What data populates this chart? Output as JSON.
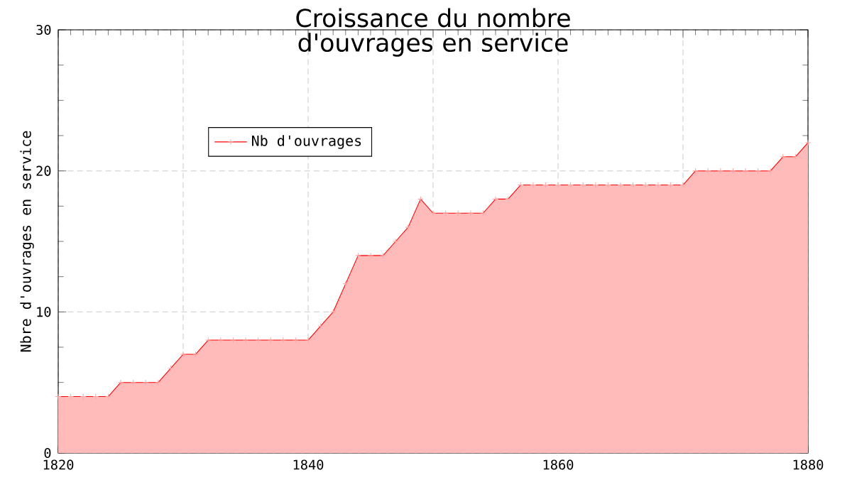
{
  "chart_data": {
    "type": "area",
    "title": "Croissance du nombre d'ouvrages en service",
    "ylabel": "Nbre d'ouvrages en service",
    "x": [
      1820,
      1821,
      1822,
      1823,
      1824,
      1825,
      1826,
      1827,
      1828,
      1829,
      1830,
      1831,
      1832,
      1833,
      1834,
      1835,
      1836,
      1837,
      1838,
      1839,
      1840,
      1841,
      1842,
      1843,
      1844,
      1845,
      1846,
      1847,
      1848,
      1849,
      1850,
      1851,
      1852,
      1853,
      1854,
      1855,
      1856,
      1857,
      1858,
      1859,
      1860,
      1861,
      1862,
      1863,
      1864,
      1865,
      1866,
      1867,
      1868,
      1869,
      1870,
      1871,
      1872,
      1873,
      1874,
      1875,
      1876,
      1877,
      1878,
      1879,
      1880
    ],
    "series": [
      {
        "name": "Nb d'ouvrages",
        "color": "#ff0000",
        "values": [
          4,
          4,
          4,
          4,
          4,
          5,
          5,
          5,
          5,
          6,
          7,
          7,
          8,
          8,
          8,
          8,
          8,
          8,
          8,
          8,
          8,
          9,
          10,
          12,
          14,
          14,
          14,
          15,
          16,
          18,
          17,
          17,
          17,
          17,
          17,
          18,
          18,
          19,
          19,
          19,
          19,
          19,
          19,
          19,
          19,
          19,
          19,
          19,
          19,
          19,
          19,
          20,
          20,
          20,
          20,
          20,
          20,
          20,
          21,
          21,
          22
        ]
      }
    ],
    "xlim": [
      1820,
      1880
    ],
    "xticks": [
      1820,
      {
        "value": 1830,
        "label": null
      },
      1840,
      {
        "value": 1850,
        "label": null
      },
      1860,
      {
        "value": 1870,
        "label": null
      },
      1880
    ],
    "ylim": [
      0,
      30
    ],
    "yticks": [
      0,
      10,
      20,
      30
    ],
    "grid": true,
    "legend": "top left",
    "marker": "cross",
    "line_style": "solid"
  }
}
